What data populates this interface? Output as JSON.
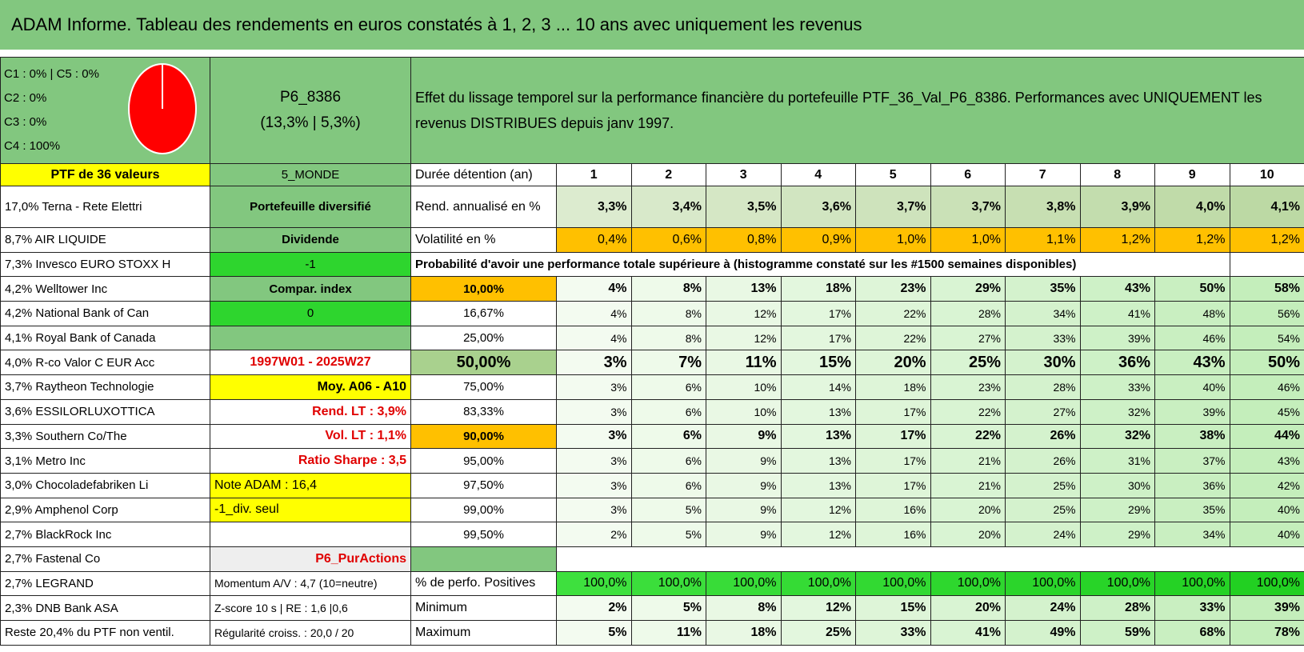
{
  "title": "ADAM Informe. Tableau des rendements en euros constatés à 1, 2, 3 ... 10 ans avec uniquement les revenus",
  "composition": [
    "C1 : 0% | C5 : 0%",
    "C2 : 0%",
    "C3 : 0%",
    "C4 : 100%"
  ],
  "portfolio": {
    "code": "P6_8386",
    "stats": "(13,3% | 5,3%)"
  },
  "description": "Effet du lissage temporel sur la performance financière du portefeuille PTF_36_Val_P6_8386. Performances avec UNIQUEMENT les revenus DISTRIBUES depuis janv 1997.",
  "left_rows": [
    {
      "holding": "PTF de 36 valeurs",
      "info": "5_MONDE"
    },
    {
      "holding": "17,0% Terna - Rete Elettri",
      "info": "Portefeuille diversifié"
    },
    {
      "holding": "8,7% AIR LIQUIDE",
      "info": "Dividende"
    },
    {
      "holding": "7,3% Invesco EURO STOXX H",
      "info": "-1"
    },
    {
      "holding": "4,2% Welltower Inc",
      "info": "Compar. index"
    },
    {
      "holding": "4,2% National Bank of Can",
      "info": "0"
    },
    {
      "holding": "4,1% Royal Bank of Canada"
    },
    {
      "holding": "4,0% R-co Valor C EUR Acc",
      "info": "1997W01 - 2025W27"
    },
    {
      "holding": "3,7% Raytheon Technologie",
      "info": "Moy. A06 - A10"
    },
    {
      "holding": "3,6% ESSILORLUXOTTICA",
      "info": "Rend. LT : 3,9%"
    },
    {
      "holding": "3,3% Southern Co/The",
      "info": "Vol. LT : 1,1%"
    },
    {
      "holding": "3,1% Metro Inc",
      "info": "Ratio Sharpe : 3,5"
    },
    {
      "holding": "3,0% Chocoladefabriken Li",
      "info": "Note ADAM : 16,4"
    },
    {
      "holding": "2,9% Amphenol Corp",
      "info": "-1_div. seul"
    },
    {
      "holding": "2,7% BlackRock Inc"
    },
    {
      "holding": "2,7% Fastenal Co",
      "info": "P6_PurActions"
    },
    {
      "holding": "2,7% LEGRAND",
      "info": "Momentum A/V : 4,7 (10=neutre)"
    },
    {
      "holding": "2,3% DNB Bank ASA",
      "info": "Z-score 10 s | RE : 1,6 |0,6"
    },
    {
      "holding": "Reste 20,4% du PTF non ventil.",
      "info": "Régularité croiss. : 20,0 / 20"
    }
  ],
  "grid": {
    "header_label": "Durée détention (an)",
    "years": [
      1,
      2,
      3,
      4,
      5,
      6,
      7,
      8,
      9,
      10
    ],
    "rows": [
      {
        "label": "Rend. annualisé en %",
        "values": [
          "3,3%",
          "3,4%",
          "3,5%",
          "3,6%",
          "3,7%",
          "3,7%",
          "3,8%",
          "3,9%",
          "4,0%",
          "4,1%"
        ]
      },
      {
        "label": "Volatilité en %",
        "values": [
          "0,4%",
          "0,6%",
          "0,8%",
          "0,9%",
          "1,0%",
          "1,0%",
          "1,1%",
          "1,2%",
          "1,2%",
          "1,2%"
        ]
      }
    ],
    "probability_title": "Probabilité d'avoir une performance totale supérieure à (histogramme constaté sur les #1500 semaines disponibles)",
    "probability_rows": [
      {
        "level": "10,00%",
        "values": [
          "4%",
          "8%",
          "13%",
          "18%",
          "23%",
          "29%",
          "35%",
          "43%",
          "50%",
          "58%"
        ]
      },
      {
        "level": "16,67%",
        "values": [
          "4%",
          "8%",
          "12%",
          "17%",
          "22%",
          "28%",
          "34%",
          "41%",
          "48%",
          "56%"
        ]
      },
      {
        "level": "25,00%",
        "values": [
          "4%",
          "8%",
          "12%",
          "17%",
          "22%",
          "27%",
          "33%",
          "39%",
          "46%",
          "54%"
        ]
      },
      {
        "level": "50,00%",
        "values": [
          "3%",
          "7%",
          "11%",
          "15%",
          "20%",
          "25%",
          "30%",
          "36%",
          "43%",
          "50%"
        ]
      },
      {
        "level": "75,00%",
        "values": [
          "3%",
          "6%",
          "10%",
          "14%",
          "18%",
          "23%",
          "28%",
          "33%",
          "40%",
          "46%"
        ]
      },
      {
        "level": "83,33%",
        "values": [
          "3%",
          "6%",
          "10%",
          "13%",
          "17%",
          "22%",
          "27%",
          "32%",
          "39%",
          "45%"
        ]
      },
      {
        "level": "90,00%",
        "values": [
          "3%",
          "6%",
          "9%",
          "13%",
          "17%",
          "22%",
          "26%",
          "32%",
          "38%",
          "44%"
        ]
      },
      {
        "level": "95,00%",
        "values": [
          "3%",
          "6%",
          "9%",
          "13%",
          "17%",
          "21%",
          "26%",
          "31%",
          "37%",
          "43%"
        ]
      },
      {
        "level": "97,50%",
        "values": [
          "3%",
          "6%",
          "9%",
          "13%",
          "17%",
          "21%",
          "25%",
          "30%",
          "36%",
          "42%"
        ]
      },
      {
        "level": "99,00%",
        "values": [
          "3%",
          "5%",
          "9%",
          "12%",
          "16%",
          "20%",
          "25%",
          "29%",
          "35%",
          "40%"
        ]
      },
      {
        "level": "99,50%",
        "values": [
          "2%",
          "5%",
          "9%",
          "12%",
          "16%",
          "20%",
          "24%",
          "29%",
          "34%",
          "40%"
        ]
      }
    ],
    "summary_rows": [
      {
        "label": "% de perfo. Positives",
        "values": [
          "100,0%",
          "100,0%",
          "100,0%",
          "100,0%",
          "100,0%",
          "100,0%",
          "100,0%",
          "100,0%",
          "100,0%",
          "100,0%"
        ]
      },
      {
        "label": "Minimum",
        "values": [
          "2%",
          "5%",
          "8%",
          "12%",
          "15%",
          "20%",
          "24%",
          "28%",
          "33%",
          "39%"
        ]
      },
      {
        "label": "Maximum",
        "values": [
          "5%",
          "11%",
          "18%",
          "25%",
          "33%",
          "41%",
          "49%",
          "59%",
          "68%",
          "78%"
        ]
      }
    ]
  }
}
